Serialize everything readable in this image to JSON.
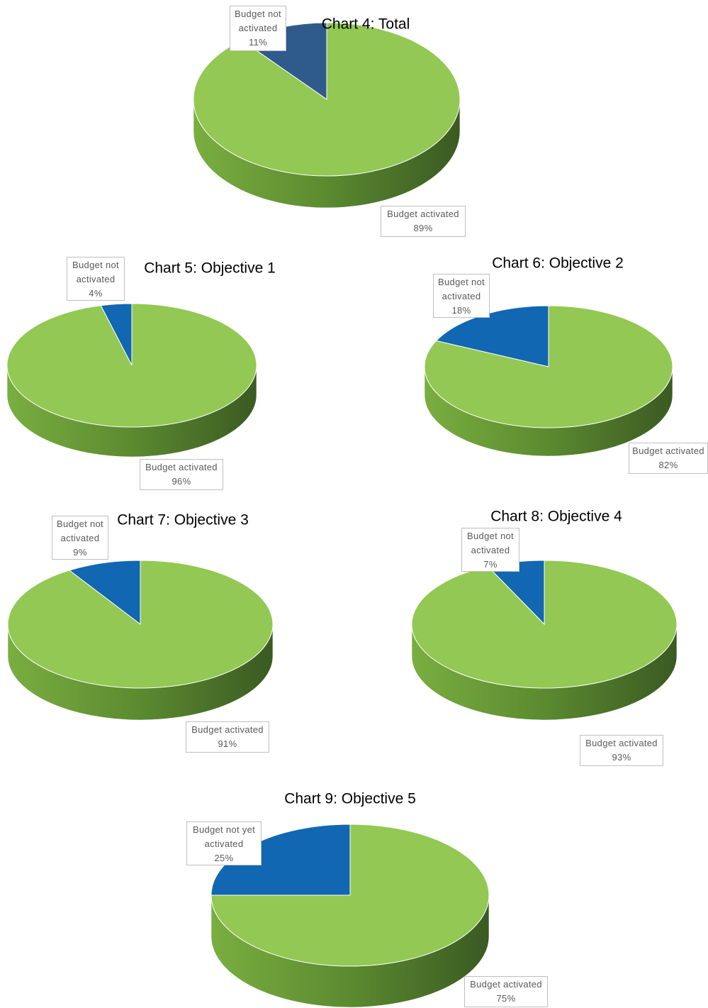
{
  "chart_data": [
    {
      "type": "pie",
      "title": "Chart 4: Total",
      "categories": [
        "Budget not activated",
        "Budget activated"
      ],
      "values": [
        11,
        89
      ],
      "value_labels": [
        "11%",
        "89%"
      ],
      "colors": [
        "#2f5a8c",
        "#92c853"
      ]
    },
    {
      "type": "pie",
      "title": "Chart 5: Objective 1",
      "categories": [
        "Budget not activated",
        "Budget activated"
      ],
      "values": [
        4,
        96
      ],
      "value_labels": [
        "4%",
        "96%"
      ],
      "colors": [
        "#1167b1",
        "#92c853"
      ]
    },
    {
      "type": "pie",
      "title": "Chart 6: Objective 2",
      "categories": [
        "Budget not activated",
        "Budget activated"
      ],
      "values": [
        18,
        82
      ],
      "value_labels": [
        "18%",
        "82%"
      ],
      "colors": [
        "#1167b1",
        "#92c853"
      ]
    },
    {
      "type": "pie",
      "title": "Chart 7: Objective 3",
      "categories": [
        "Budget not activated",
        "Budget activated"
      ],
      "values": [
        9,
        91
      ],
      "value_labels": [
        "9%",
        "91%"
      ],
      "colors": [
        "#1167b1",
        "#92c853"
      ]
    },
    {
      "type": "pie",
      "title": "Chart 8: Objective 4",
      "categories": [
        "Budget not activated",
        "Budget activated"
      ],
      "values": [
        7,
        93
      ],
      "value_labels": [
        "7%",
        "93%"
      ],
      "colors": [
        "#1167b1",
        "#92c853"
      ]
    },
    {
      "type": "pie",
      "title": "Chart 9: Objective 5",
      "categories": [
        "Budget not yet activated",
        "Budget activated"
      ],
      "values": [
        25,
        75
      ],
      "value_labels": [
        "25%",
        "75%"
      ],
      "colors": [
        "#1167b1",
        "#92c853"
      ]
    }
  ]
}
